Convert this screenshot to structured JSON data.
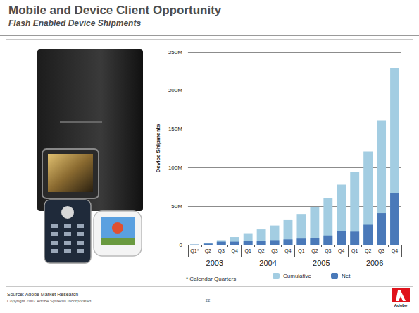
{
  "slide": {
    "title": "Mobile and Device Client Opportunity",
    "subtitle": "Flash Enabled Device Shipments",
    "source": "Source: Adobe Market Research",
    "copyright": "Copyright 2007 Adobe Systems Incorporated.",
    "page": 22,
    "logo": "Adobe"
  },
  "chart_data": {
    "type": "bar",
    "y_label": "Device Shipments",
    "categories": [
      "Q1*",
      "Q2",
      "Q3",
      "Q4",
      "Q1",
      "Q2",
      "Q3",
      "Q4",
      "Q1",
      "Q2",
      "Q3",
      "Q4",
      "Q1",
      "Q2",
      "Q3",
      "Q4"
    ],
    "category_groups": [
      "2003",
      "2004",
      "2005",
      "2006"
    ],
    "series": [
      {
        "name": "Cumulative",
        "color": "#a3cde2",
        "values": [
          0.5,
          2,
          6,
          10,
          15,
          20,
          25,
          32,
          40,
          49,
          61,
          78,
          95,
          121,
          161,
          229
        ]
      },
      {
        "name": "Net",
        "color": "#4a79b9",
        "values": [
          0.3,
          1.5,
          4,
          4,
          5,
          5,
          6,
          7,
          8,
          9,
          12,
          18,
          17,
          26,
          41,
          67
        ]
      }
    ],
    "ylim": [
      0,
      250
    ],
    "yticks": [
      0,
      {
        "value": 50,
        "label": "50M"
      },
      {
        "value": 100,
        "label": "100M"
      },
      {
        "value": 150,
        "label": "150M"
      },
      {
        "value": 200,
        "label": "200M"
      },
      {
        "value": 250,
        "label": "250M"
      }
    ],
    "grid": true,
    "legend": "bottom",
    "footnote": "* Calendar Quarters"
  }
}
